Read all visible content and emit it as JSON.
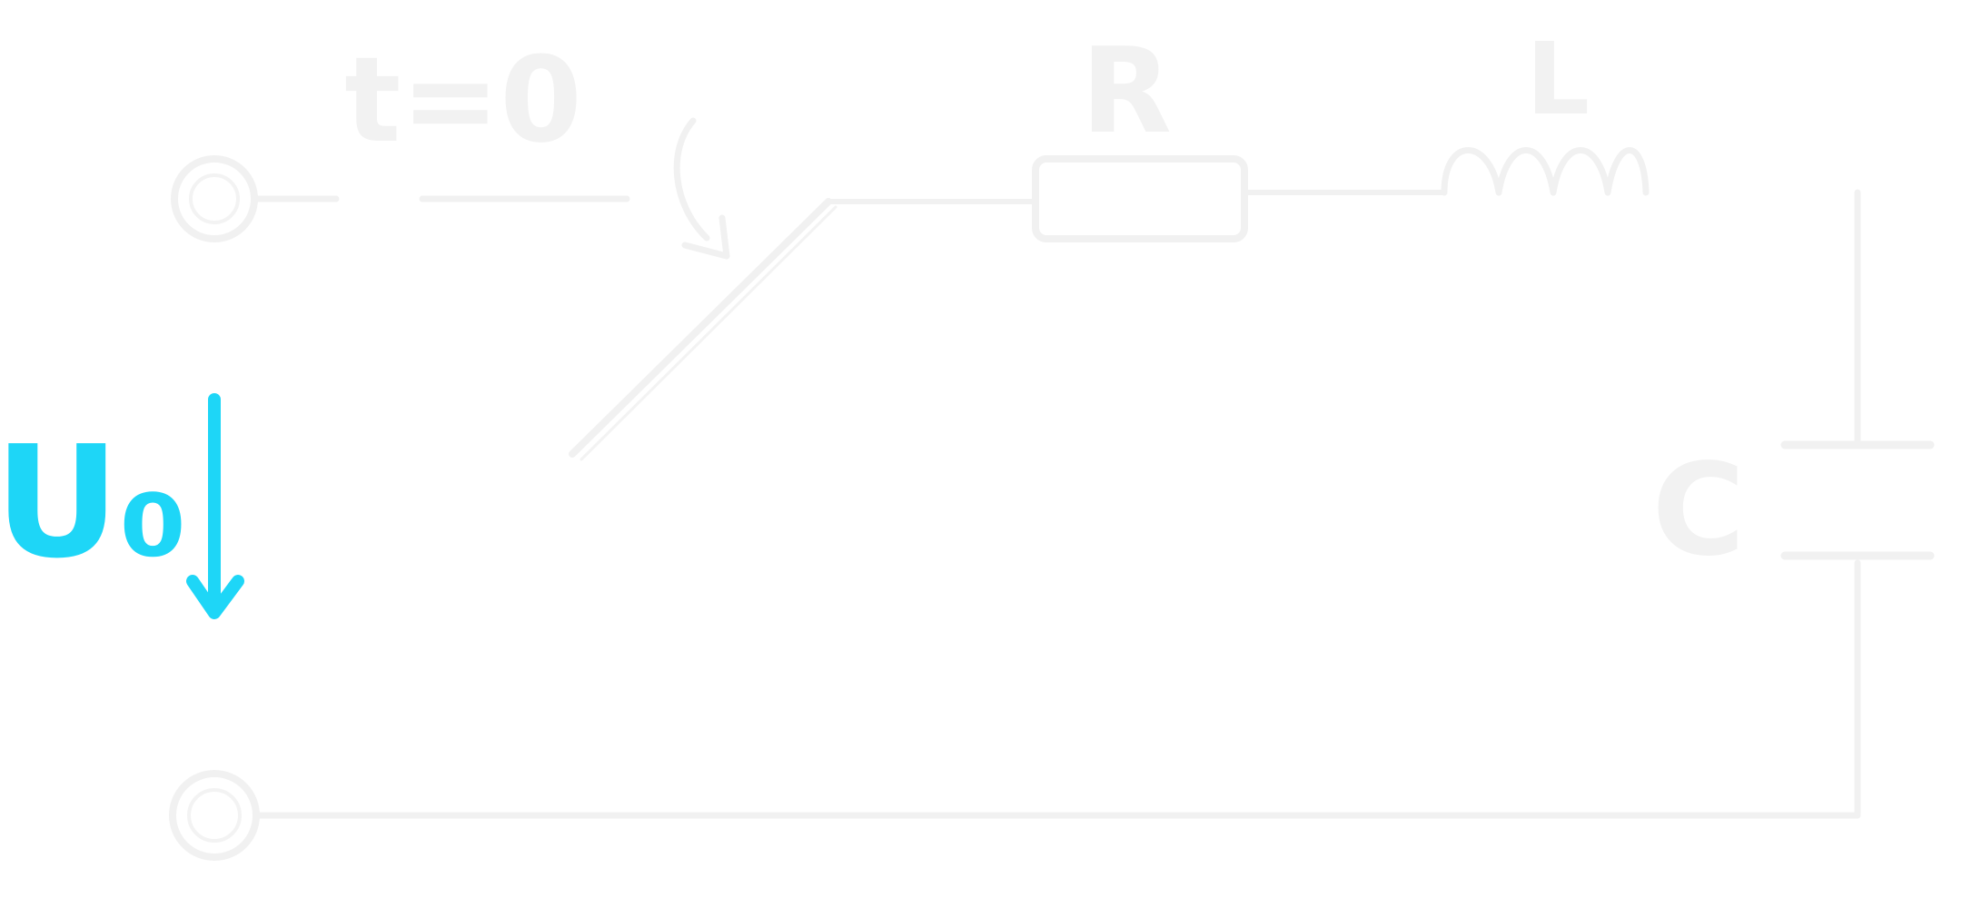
{
  "diagram": {
    "labels": {
      "switch_time": "t=0",
      "resistor": "R",
      "inductor": "L",
      "capacitor": "C",
      "source_voltage": "U₀"
    },
    "colors": {
      "background": "#ffffff",
      "faint_stroke": "#f1f1f1",
      "accent": "#1ed6f7"
    }
  }
}
